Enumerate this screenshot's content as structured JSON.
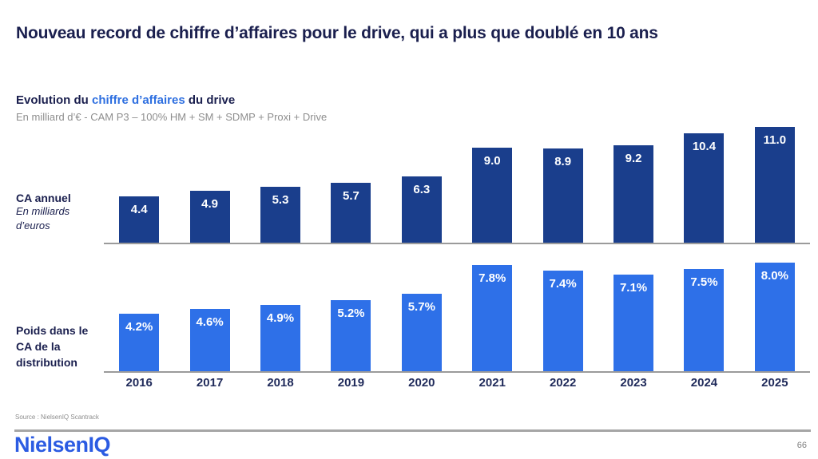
{
  "title": "Nouveau record de chiffre d’affaires pour le drive, qui a plus que doublé en 10 ans",
  "subtitle": {
    "part1": "Evolution du ",
    "highlight": "chiffre d’affaires",
    "part2": " du drive",
    "methodology": "En milliard d’€ - CAM P3 – 100% HM + SM + SDMP + Proxi + Drive"
  },
  "side_labels": {
    "top_bold": "CA annuel",
    "top_italic": "En milliards d’euros",
    "bottom_bold": "Poids dans le CA de la distribution"
  },
  "chart_data": {
    "type": "bar",
    "title": "Evolution du chiffre d’affaires du drive",
    "subtitle": "En milliard d’€ - CAM P3 – 100% HM + SM + SDMP + Proxi + Drive",
    "categories": [
      "2016",
      "2017",
      "2018",
      "2019",
      "2020",
      "2021",
      "2022",
      "2023",
      "2024",
      "2025"
    ],
    "series": [
      {
        "name": "CA annuel (en milliards d’euros)",
        "values": [
          4.4,
          4.9,
          5.3,
          5.7,
          6.3,
          9.0,
          8.9,
          9.2,
          10.4,
          11.0
        ],
        "labels": [
          "4.4",
          "4.9",
          "5.3",
          "5.7",
          "6.3",
          "9.0",
          "8.9",
          "9.2",
          "10.4",
          "11.0"
        ],
        "color": "#1A3E8C",
        "ylim": [
          0,
          11.2
        ],
        "label_position": "inside-top"
      },
      {
        "name": "Poids dans le CA de la distribution",
        "values": [
          4.2,
          4.6,
          4.9,
          5.2,
          5.7,
          7.8,
          7.4,
          7.1,
          7.5,
          8.0
        ],
        "labels": [
          "4.2%",
          "4.6%",
          "4.9%",
          "5.2%",
          "5.7%",
          "7.8%",
          "7.4%",
          "7.1%",
          "7.5%",
          "8.0%"
        ],
        "color": "#2E70E8",
        "ylim": [
          0,
          8.1
        ],
        "label_position": "inside-top"
      }
    ],
    "grid": false,
    "legend": "none",
    "layout": "two stacked bar rows sharing one x-axis of years"
  },
  "footer": {
    "source": "Source : NielsenIQ Scantrack",
    "logo": "NielsenIQ",
    "page_number": "66"
  },
  "colors": {
    "title_navy": "#1A1F4E",
    "accent_blue": "#2E6FE0",
    "dark_bar": "#1A3E8C",
    "light_bar": "#2E70E8",
    "axis_gray": "#9B9B9B"
  }
}
